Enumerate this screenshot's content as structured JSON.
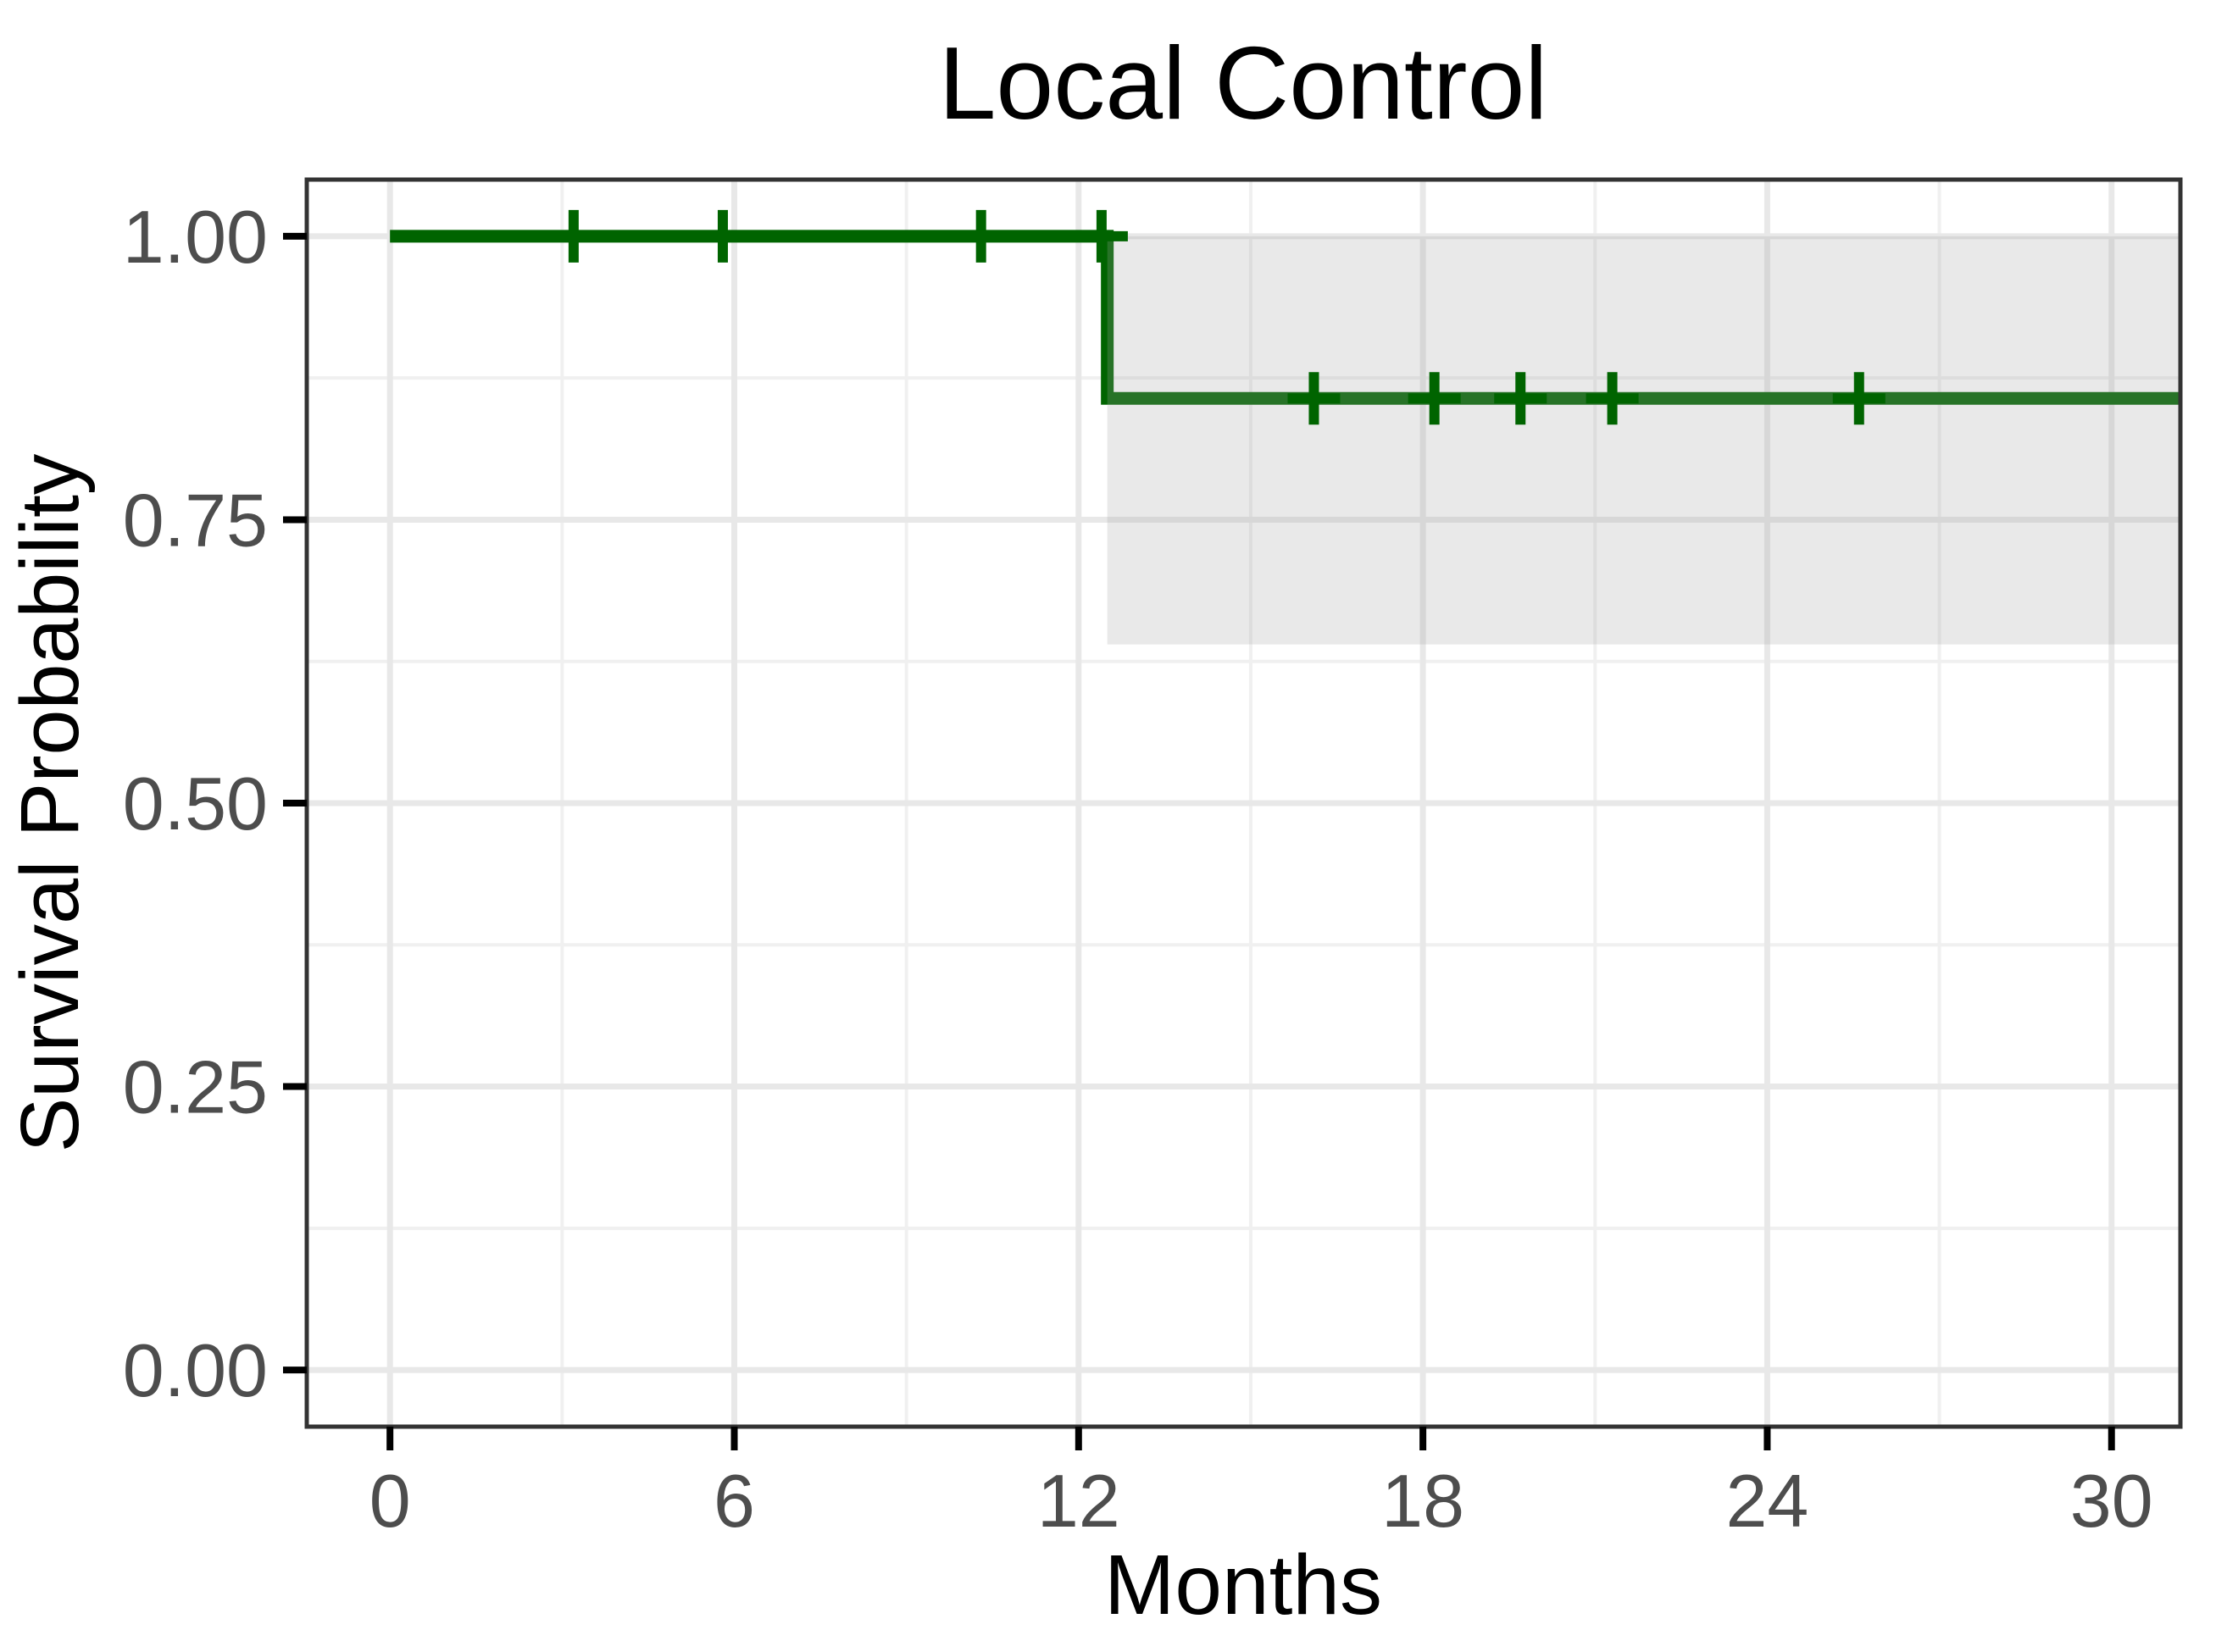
{
  "chart_data": {
    "type": "line",
    "subtype": "kaplan-meier-step",
    "title": "Local Control",
    "xlabel": "Months",
    "ylabel": "Survival Probability",
    "legend_position": "none",
    "grid": true,
    "xlim": [
      -1.45,
      31.2
    ],
    "ylim": [
      -0.05,
      1.05
    ],
    "x_tick_values": [
      0,
      6,
      12,
      18,
      24,
      30
    ],
    "x_tick_labels": [
      "0",
      "6",
      "12",
      "18",
      "24",
      "30"
    ],
    "x_minor_values": [
      3,
      9,
      15,
      21,
      27
    ],
    "y_tick_values": [
      0,
      0.25,
      0.5,
      0.75,
      1.0
    ],
    "y_tick_labels": [
      "0.00",
      "0.25",
      "0.50",
      "0.75",
      "1.00"
    ],
    "y_minor_values": [
      0.125,
      0.375,
      0.625,
      0.875
    ],
    "series": [
      {
        "name": "Local Control",
        "color": "#006400",
        "step_points": [
          {
            "x": 0,
            "y": 1.0
          },
          {
            "x": 12.5,
            "y": 0.857
          }
        ],
        "end_x": 31.2,
        "censors": [
          {
            "x": 3.2,
            "y": 1.0
          },
          {
            "x": 5.8,
            "y": 1.0
          },
          {
            "x": 10.3,
            "y": 1.0
          },
          {
            "x": 12.4,
            "y": 1.0
          },
          {
            "x": 16.1,
            "y": 0.857
          },
          {
            "x": 18.2,
            "y": 0.857
          },
          {
            "x": 19.7,
            "y": 0.857
          },
          {
            "x": 21.3,
            "y": 0.857
          },
          {
            "x": 25.6,
            "y": 0.857
          }
        ],
        "ci_band": {
          "x_start": 12.5,
          "x_end": 31.2,
          "lower": 0.64,
          "upper": 1.0,
          "fill": "#a3a3a3",
          "opacity": 0.24
        }
      }
    ],
    "colors": {
      "line": "#006400",
      "panel_background": "#ffffff",
      "panel_border": "#333333",
      "grid_major": "#e8e8e8",
      "grid_minor": "#f0f0f0",
      "tick_mark": "#000000",
      "tick_label": "#4d4d4d",
      "title": "#000000"
    }
  }
}
